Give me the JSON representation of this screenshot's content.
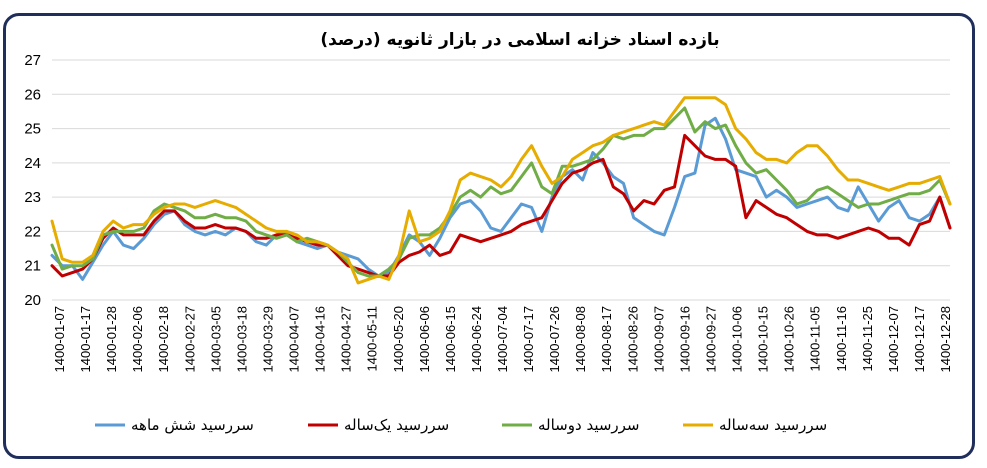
{
  "chart_data": {
    "type": "line",
    "title": "بازده اسناد خزانه اسلامی در بازار ثانویه (درصد)",
    "xlabel": "",
    "ylabel": "",
    "ylim": [
      20,
      27
    ],
    "yticks": [
      "20",
      "21",
      "22",
      "23",
      "24",
      "25",
      "26",
      "27"
    ],
    "grid": "horizontal",
    "legend_position": "bottom",
    "x_tick_labels": [
      "1400-01-07",
      "1400-01-17",
      "1400-01-28",
      "1400-02-06",
      "1400-02-18",
      "1400-02-27",
      "1400-03-05",
      "1400-03-18",
      "1400-03-29",
      "1400-04-07",
      "1400-04-16",
      "1400-04-27",
      "1400-05-11",
      "1400-05-20",
      "1400-06-06",
      "1400-06-15",
      "1400-06-24",
      "1400-07-04",
      "1400-07-17",
      "1400-07-26",
      "1400-08-08",
      "1400-08-17",
      "1400-08-26",
      "1400-09-07",
      "1400-09-16",
      "1400-09-27",
      "1400-10-06",
      "1400-10-15",
      "1400-10-26",
      "1400-11-05",
      "1400-11-16",
      "1400-11-25",
      "1400-12-07",
      "1400-12-17",
      "1400-12-28"
    ],
    "series": [
      {
        "name": "سررسید  شش ماهه",
        "color": "#5b9bd5",
        "values": [
          21.3,
          21.0,
          21.0,
          20.6,
          21.1,
          21.6,
          22.0,
          21.6,
          21.5,
          21.8,
          22.2,
          22.5,
          22.6,
          22.2,
          22.0,
          21.9,
          22.0,
          21.9,
          22.1,
          22.0,
          21.7,
          21.6,
          21.9,
          22.0,
          21.7,
          21.6,
          21.5,
          21.6,
          21.4,
          21.3,
          21.2,
          20.9,
          20.7,
          20.8,
          21.3,
          21.9,
          21.7,
          21.3,
          21.8,
          22.4,
          22.8,
          22.9,
          22.6,
          22.1,
          22.0,
          22.4,
          22.8,
          22.7,
          22.0,
          23.0,
          23.6,
          23.8,
          23.5,
          24.3,
          24.0,
          23.6,
          23.4,
          22.4,
          22.2,
          22.0,
          21.9,
          22.7,
          23.6,
          23.7,
          25.1,
          25.3,
          24.7,
          23.8,
          23.7,
          23.6,
          23.0,
          23.2,
          23.0,
          22.7,
          22.8,
          22.9,
          23.0,
          22.7,
          22.6,
          23.3,
          22.8,
          22.3,
          22.7,
          22.9,
          22.4,
          22.3,
          22.5,
          23.0,
          22.1
        ]
      },
      {
        "name": "سررسید یک‌ساله",
        "color": "#c00000",
        "values": [
          21.0,
          20.7,
          20.8,
          20.9,
          21.2,
          21.8,
          22.1,
          21.9,
          21.9,
          21.9,
          22.3,
          22.6,
          22.6,
          22.3,
          22.1,
          22.1,
          22.2,
          22.1,
          22.1,
          22.0,
          21.8,
          21.8,
          21.9,
          21.9,
          21.8,
          21.7,
          21.6,
          21.6,
          21.3,
          21.0,
          20.9,
          20.8,
          20.7,
          20.7,
          21.1,
          21.3,
          21.4,
          21.6,
          21.3,
          21.4,
          21.9,
          21.8,
          21.7,
          21.8,
          21.9,
          22.0,
          22.2,
          22.3,
          22.4,
          22.9,
          23.4,
          23.7,
          23.8,
          24.0,
          24.1,
          23.3,
          23.1,
          22.6,
          22.9,
          22.8,
          23.2,
          23.3,
          24.8,
          24.5,
          24.2,
          24.1,
          24.1,
          23.9,
          22.4,
          22.9,
          22.7,
          22.5,
          22.4,
          22.2,
          22.0,
          21.9,
          21.9,
          21.8,
          21.9,
          22.0,
          22.1,
          22.0,
          21.8,
          21.8,
          21.6,
          22.2,
          22.3,
          23.0,
          22.1
        ]
      },
      {
        "name": "سررسید دوساله",
        "color": "#70ad47",
        "values": [
          21.6,
          20.9,
          21.0,
          21.0,
          21.2,
          21.9,
          22.0,
          22.0,
          22.0,
          22.1,
          22.6,
          22.8,
          22.7,
          22.6,
          22.4,
          22.4,
          22.5,
          22.4,
          22.4,
          22.3,
          22.0,
          21.9,
          21.8,
          21.9,
          21.7,
          21.8,
          21.7,
          21.6,
          21.4,
          21.1,
          20.8,
          20.7,
          20.7,
          20.9,
          21.2,
          21.8,
          21.9,
          21.9,
          22.1,
          22.5,
          23.0,
          23.2,
          23.0,
          23.3,
          23.1,
          23.2,
          23.6,
          24.0,
          23.3,
          23.1,
          23.9,
          23.9,
          24.0,
          24.1,
          24.4,
          24.8,
          24.7,
          24.8,
          24.8,
          25.0,
          25.0,
          25.3,
          25.6,
          24.9,
          25.2,
          25.0,
          25.1,
          24.5,
          24.0,
          23.7,
          23.8,
          23.5,
          23.2,
          22.8,
          22.9,
          23.2,
          23.3,
          23.1,
          22.9,
          22.7,
          22.8,
          22.8,
          22.9,
          23.0,
          23.1,
          23.1,
          23.2,
          23.5,
          22.8
        ]
      },
      {
        "name": "سررسید سه‌ساله",
        "color": "#e6ac00",
        "values": [
          22.3,
          21.2,
          21.1,
          21.1,
          21.3,
          22.0,
          22.3,
          22.1,
          22.2,
          22.2,
          22.5,
          22.7,
          22.8,
          22.8,
          22.7,
          22.8,
          22.9,
          22.8,
          22.7,
          22.5,
          22.3,
          22.1,
          22.0,
          22.0,
          21.9,
          21.7,
          21.7,
          21.6,
          21.4,
          21.2,
          20.5,
          20.6,
          20.7,
          20.6,
          21.3,
          22.6,
          21.7,
          21.8,
          22.0,
          22.6,
          23.5,
          23.7,
          23.6,
          23.5,
          23.3,
          23.6,
          24.1,
          24.5,
          23.9,
          23.4,
          23.6,
          24.1,
          24.3,
          24.5,
          24.6,
          24.8,
          24.9,
          25.0,
          25.1,
          25.2,
          25.1,
          25.5,
          25.9,
          25.9,
          25.9,
          25.9,
          25.7,
          25.0,
          24.7,
          24.3,
          24.1,
          24.1,
          24.0,
          24.3,
          24.5,
          24.5,
          24.2,
          23.8,
          23.5,
          23.5,
          23.4,
          23.3,
          23.2,
          23.3,
          23.4,
          23.4,
          23.5,
          23.6,
          22.8
        ]
      }
    ]
  }
}
